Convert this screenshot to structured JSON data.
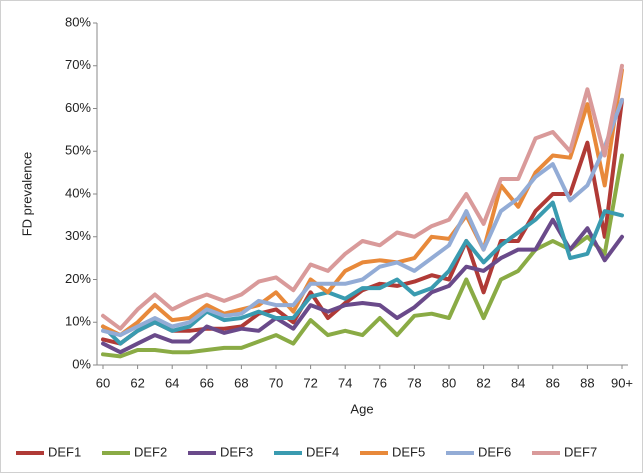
{
  "chart_data": {
    "type": "line",
    "ylabel": "FD prevalence",
    "xlabel": "Age",
    "categories": [
      "60",
      null,
      "62",
      null,
      "64",
      null,
      "66",
      null,
      "68",
      null,
      "70",
      null,
      "72",
      null,
      "74",
      null,
      "76",
      null,
      "78",
      null,
      "80",
      null,
      "82",
      null,
      "84",
      null,
      "86",
      null,
      "88",
      null,
      "90+"
    ],
    "ylim": [
      0,
      80
    ],
    "yticks": [
      {
        "value": 0,
        "label": "0%"
      },
      {
        "value": 10,
        "label": "10%"
      },
      {
        "value": 20,
        "label": "20%"
      },
      {
        "value": 30,
        "label": "30%"
      },
      {
        "value": 40,
        "label": "40%"
      },
      {
        "value": 50,
        "label": "50%"
      },
      {
        "value": 60,
        "label": "60%"
      },
      {
        "value": 70,
        "label": "70%"
      },
      {
        "value": 80,
        "label": "80%"
      }
    ],
    "grid": false,
    "legend": "bottom",
    "series": [
      {
        "name": "DEF1",
        "color": "#b03a36",
        "values": [
          6,
          5,
          8,
          10,
          8,
          8,
          8.5,
          8.5,
          9,
          12,
          13,
          10,
          17,
          11,
          14.5,
          17.5,
          19,
          18.5,
          19.5,
          21,
          20,
          29,
          17,
          29,
          29,
          36,
          40,
          40,
          52,
          30,
          62
        ]
      },
      {
        "name": "DEF2",
        "color": "#8aab45",
        "values": [
          2.5,
          2,
          3.5,
          3.5,
          3,
          3,
          3.5,
          4,
          4,
          5.5,
          7,
          5,
          10.5,
          7,
          8,
          7,
          11,
          7,
          11.5,
          12,
          11,
          20,
          11,
          20,
          22,
          27,
          29,
          27,
          30,
          26,
          49
        ]
      },
      {
        "name": "DEF3",
        "color": "#6a4a8a",
        "values": [
          5,
          3,
          5,
          7,
          5.5,
          5.5,
          9,
          7.5,
          8.5,
          8,
          11,
          8.5,
          14,
          12.5,
          14,
          14.5,
          14,
          11,
          13.5,
          17,
          18.5,
          23,
          22,
          25,
          27,
          27,
          34,
          27,
          32,
          24.5,
          30
        ]
      },
      {
        "name": "DEF4",
        "color": "#3a9bb0",
        "values": [
          9,
          5,
          8,
          10,
          8,
          9,
          12.5,
          10.5,
          11,
          12.5,
          11,
          11,
          16,
          17,
          15.5,
          18,
          18,
          20,
          16.5,
          18,
          22,
          29,
          24,
          28,
          31,
          34,
          38,
          25,
          26,
          36,
          35
        ]
      },
      {
        "name": "DEF5",
        "color": "#e8893a",
        "values": [
          9,
          7,
          10,
          14,
          10.5,
          11,
          14,
          12,
          13,
          14,
          17,
          12.5,
          20,
          17,
          22,
          24,
          24.5,
          24,
          25,
          30,
          29.5,
          35,
          27,
          42,
          37,
          45,
          49,
          48.5,
          61,
          42,
          69
        ]
      },
      {
        "name": "DEF6",
        "color": "#93acd6",
        "values": [
          8,
          7,
          9,
          11,
          9,
          10,
          13,
          11.5,
          12,
          15,
          14,
          14,
          19,
          19,
          19,
          20,
          23,
          24,
          22,
          25,
          28,
          36,
          27,
          36,
          39,
          44,
          47,
          38.5,
          42,
          51,
          62
        ]
      },
      {
        "name": "DEF7",
        "color": "#d99a9a",
        "values": [
          11.5,
          8.5,
          13,
          16.5,
          13,
          15,
          16.5,
          15,
          16.5,
          19.5,
          20.5,
          17.5,
          23.5,
          22,
          26,
          29,
          28,
          31,
          30,
          32.5,
          34,
          40,
          33,
          43.5,
          43.5,
          53,
          54.5,
          50,
          64.5,
          49,
          70
        ]
      }
    ]
  }
}
